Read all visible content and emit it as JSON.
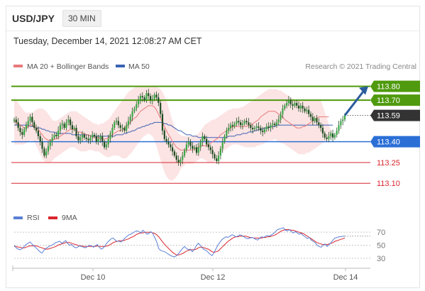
{
  "header": {
    "symbol": "USD/JPY",
    "timeframe": "30 MIN"
  },
  "timestamp": "Tuesday, December 14, 2021 12:08:27 AM CET",
  "legend": {
    "bollinger": "MA 20 + Bollinger Bands",
    "ma50": "MA 50",
    "credit": "Research © 2021 Trading Central"
  },
  "rsi_legend": {
    "rsi": "RSI",
    "ma9": "9MA"
  },
  "colors": {
    "green": "#4f9a0e",
    "blue": "#2b6fd6",
    "red": "#d8262d",
    "bb_fill": "#fce4e4",
    "ma20": "#e8797b",
    "ma50": "#3a62b3",
    "candle": "#2e7d32",
    "arrow": "#2c5c9e",
    "current_box": "#333333"
  },
  "chart_data": [
    {
      "type": "candlestick",
      "title": "USD/JPY 30 MIN",
      "x_tick_labels": [
        "Dec 10",
        "Dec 12",
        "Dec 14"
      ],
      "ylim": [
        113.05,
        113.88
      ],
      "levels": [
        {
          "value": 113.8,
          "label": "113.80",
          "kind": "resistance"
        },
        {
          "value": 113.7,
          "label": "113.70",
          "kind": "resistance"
        },
        {
          "value": 113.59,
          "label": "113.59",
          "kind": "current"
        },
        {
          "value": 113.4,
          "label": "113.40",
          "kind": "pivot"
        },
        {
          "value": 113.25,
          "label": "113.25",
          "kind": "support"
        },
        {
          "value": 113.1,
          "label": "113.10",
          "kind": "support"
        }
      ],
      "close": [
        113.56,
        113.54,
        113.5,
        113.47,
        113.45,
        113.49,
        113.52,
        113.55,
        113.58,
        113.54,
        113.5,
        113.48,
        113.44,
        113.4,
        113.35,
        113.3,
        113.33,
        113.37,
        113.4,
        113.43,
        113.45,
        113.44,
        113.48,
        113.52,
        113.53,
        113.5,
        113.54,
        113.56,
        113.52,
        113.49,
        113.5,
        113.44,
        113.41,
        113.43,
        113.45,
        113.43,
        113.42,
        113.41,
        113.43,
        113.45,
        113.44,
        113.4,
        113.42,
        113.44,
        113.4,
        113.36,
        113.38,
        113.42,
        113.46,
        113.5,
        113.54,
        113.55,
        113.52,
        113.5,
        113.5,
        113.48,
        113.52,
        113.55,
        113.58,
        113.62,
        113.64,
        113.67,
        113.7,
        113.73,
        113.72,
        113.7,
        113.75,
        113.73,
        113.7,
        113.71,
        113.74,
        113.72,
        113.68,
        113.6,
        113.48,
        113.42,
        113.4,
        113.38,
        113.36,
        113.33,
        113.3,
        113.27,
        113.25,
        113.27,
        113.3,
        113.34,
        113.38,
        113.4,
        113.37,
        113.35,
        113.36,
        113.32,
        113.36,
        113.4,
        113.44,
        113.42,
        113.38,
        113.36,
        113.34,
        113.31,
        113.28,
        113.26,
        113.3,
        113.35,
        113.4,
        113.44,
        113.48,
        113.5,
        113.52,
        113.51,
        113.53,
        113.55,
        113.54,
        113.52,
        113.53,
        113.55,
        113.54,
        113.52,
        113.5,
        113.49,
        113.5,
        113.51,
        113.5,
        113.48,
        113.47,
        113.49,
        113.51,
        113.5,
        113.52,
        113.53,
        113.52,
        113.54,
        113.56,
        113.6,
        113.64,
        113.66,
        113.68,
        113.7,
        113.67,
        113.66,
        113.68,
        113.66,
        113.64,
        113.66,
        113.64,
        113.62,
        113.63,
        113.6,
        113.58,
        113.55,
        113.57,
        113.54,
        113.52,
        113.5,
        113.46,
        113.43,
        113.42,
        113.44,
        113.46,
        113.43,
        113.45,
        113.48,
        113.52,
        113.55,
        113.56,
        113.59
      ],
      "ma20": [
        113.55,
        113.54,
        113.53,
        113.52,
        113.51,
        113.5,
        113.5,
        113.51,
        113.52,
        113.52,
        113.51,
        113.5,
        113.49,
        113.47,
        113.45,
        113.43,
        113.42,
        113.41,
        113.41,
        113.41,
        113.42,
        113.42,
        113.43,
        113.44,
        113.45,
        113.46,
        113.47,
        113.48,
        113.49,
        113.49,
        113.49,
        113.48,
        113.47,
        113.47,
        113.46,
        113.46,
        113.45,
        113.45,
        113.44,
        113.44,
        113.43,
        113.43,
        113.43,
        113.42,
        113.42,
        113.42,
        113.42,
        113.43,
        113.44,
        113.45,
        113.46,
        113.47,
        113.48,
        113.48,
        113.49,
        113.5,
        113.51,
        113.53,
        113.54,
        113.56,
        113.57,
        113.58,
        113.6,
        113.62,
        113.63,
        113.64,
        113.65,
        113.66,
        113.66,
        113.66,
        113.65,
        113.63,
        113.6,
        113.57,
        113.54,
        113.51,
        113.48,
        113.45,
        113.43,
        113.4,
        113.38,
        113.36,
        113.35,
        113.34,
        113.34,
        113.34,
        113.34,
        113.34,
        113.34,
        113.34,
        113.35,
        113.35,
        113.36,
        113.37,
        113.37,
        113.37,
        113.37,
        113.38,
        113.39,
        113.4,
        113.41,
        113.42,
        113.43,
        113.45,
        113.46,
        113.47,
        113.48,
        113.49,
        113.5,
        113.51,
        113.51,
        113.51,
        113.51,
        113.51,
        113.51,
        113.51,
        113.51,
        113.52,
        113.52,
        113.53,
        113.54,
        113.55,
        113.56,
        113.58,
        113.59,
        113.6,
        113.61,
        113.62,
        113.62,
        113.62,
        113.62,
        113.61,
        113.6,
        113.59,
        113.58,
        113.56,
        113.55,
        113.54,
        113.53,
        113.52,
        113.51,
        113.5,
        113.5,
        113.5,
        113.51,
        113.51,
        113.52,
        113.53,
        113.54,
        113.55,
        113.56,
        113.57,
        113.58,
        113.58,
        113.58,
        113.58,
        113.58,
        113.58
      ],
      "bb_upper": [
        113.72,
        113.7,
        113.68,
        113.66,
        113.64,
        113.62,
        113.61,
        113.61,
        113.61,
        113.61,
        113.62,
        113.63,
        113.64,
        113.64,
        113.64,
        113.63,
        113.62,
        113.6,
        113.58,
        113.56,
        113.55,
        113.55,
        113.56,
        113.57,
        113.58,
        113.59,
        113.6,
        113.61,
        113.62,
        113.62,
        113.62,
        113.62,
        113.61,
        113.6,
        113.59,
        113.58,
        113.57,
        113.56,
        113.55,
        113.54,
        113.53,
        113.53,
        113.52,
        113.53,
        113.53,
        113.54,
        113.55,
        113.56,
        113.58,
        113.6,
        113.62,
        113.64,
        113.66,
        113.68,
        113.7,
        113.72,
        113.74,
        113.76,
        113.77,
        113.78,
        113.79,
        113.8,
        113.8,
        113.8,
        113.8,
        113.8,
        113.8,
        113.8,
        113.8,
        113.8,
        113.8,
        113.8,
        113.79,
        113.78,
        113.76,
        113.73,
        113.7,
        113.65,
        113.6,
        113.55,
        113.51,
        113.48,
        113.46,
        113.45,
        113.44,
        113.44,
        113.44,
        113.44,
        113.44,
        113.44,
        113.44,
        113.45,
        113.46,
        113.48,
        113.5,
        113.52,
        113.53,
        113.54,
        113.55,
        113.56,
        113.56,
        113.57,
        113.58,
        113.59,
        113.6,
        113.61,
        113.62,
        113.63,
        113.63,
        113.64,
        113.64,
        113.64,
        113.64,
        113.65,
        113.65,
        113.66,
        113.67,
        113.68,
        113.69,
        113.7,
        113.71,
        113.72,
        113.73,
        113.74,
        113.75,
        113.76,
        113.77,
        113.78,
        113.78,
        113.78,
        113.78,
        113.78,
        113.77,
        113.77,
        113.76,
        113.75,
        113.74,
        113.73,
        113.72,
        113.71,
        113.7,
        113.7,
        113.7,
        113.7,
        113.7,
        113.7,
        113.7,
        113.7,
        113.7,
        113.7,
        113.7,
        113.7,
        113.7,
        113.7
      ],
      "bb_lower": [
        113.38,
        113.38,
        113.38,
        113.38,
        113.38,
        113.38,
        113.39,
        113.4,
        113.41,
        113.41,
        113.4,
        113.37,
        113.34,
        113.31,
        113.28,
        113.26,
        113.25,
        113.25,
        113.25,
        113.26,
        113.28,
        113.29,
        113.3,
        113.31,
        113.32,
        113.33,
        113.34,
        113.35,
        113.36,
        113.36,
        113.36,
        113.35,
        113.34,
        113.33,
        113.33,
        113.33,
        113.33,
        113.34,
        113.34,
        113.34,
        113.33,
        113.33,
        113.33,
        113.32,
        113.31,
        113.3,
        113.29,
        113.29,
        113.29,
        113.3,
        113.3,
        113.3,
        113.3,
        113.29,
        113.28,
        113.28,
        113.28,
        113.3,
        113.31,
        113.33,
        113.35,
        113.37,
        113.39,
        113.41,
        113.43,
        113.44,
        113.45,
        113.46,
        113.45,
        113.44,
        113.41,
        113.37,
        113.32,
        113.27,
        113.22,
        113.18,
        113.15,
        113.13,
        113.12,
        113.12,
        113.13,
        113.15,
        113.17,
        113.2,
        113.22,
        113.23,
        113.24,
        113.24,
        113.24,
        113.24,
        113.25,
        113.26,
        113.27,
        113.28,
        113.28,
        113.27,
        113.26,
        113.25,
        113.25,
        113.25,
        113.26,
        113.28,
        113.3,
        113.32,
        113.33,
        113.34,
        113.35,
        113.36,
        113.37,
        113.38,
        113.38,
        113.38,
        113.38,
        113.37,
        113.37,
        113.36,
        113.36,
        113.36,
        113.36,
        113.36,
        113.36,
        113.37,
        113.37,
        113.38,
        113.38,
        113.39,
        113.4,
        113.41,
        113.41,
        113.41,
        113.42,
        113.41,
        113.4,
        113.39,
        113.39,
        113.38,
        113.37,
        113.36,
        113.35,
        113.34,
        113.33,
        113.32,
        113.31,
        113.31,
        113.31,
        113.31,
        113.32,
        113.32,
        113.33,
        113.34,
        113.35,
        113.36,
        113.37,
        113.38,
        113.39,
        113.4,
        113.41,
        113.42,
        113.43,
        113.44
      ],
      "ma50": [
        113.52,
        113.52,
        113.52,
        113.52,
        113.52,
        113.52,
        113.52,
        113.52,
        113.51,
        113.51,
        113.51,
        113.5,
        113.5,
        113.5,
        113.49,
        113.49,
        113.48,
        113.48,
        113.47,
        113.47,
        113.47,
        113.46,
        113.46,
        113.46,
        113.46,
        113.46,
        113.46,
        113.46,
        113.46,
        113.45,
        113.45,
        113.45,
        113.45,
        113.45,
        113.45,
        113.45,
        113.45,
        113.45,
        113.44,
        113.44,
        113.44,
        113.44,
        113.44,
        113.44,
        113.44,
        113.44,
        113.44,
        113.44,
        113.44,
        113.44,
        113.44,
        113.45,
        113.45,
        113.45,
        113.45,
        113.46,
        113.46,
        113.47,
        113.47,
        113.48,
        113.48,
        113.49,
        113.5,
        113.5,
        113.51,
        113.51,
        113.52,
        113.52,
        113.53,
        113.53,
        113.54,
        113.54,
        113.54,
        113.54,
        113.54,
        113.53,
        113.53,
        113.52,
        113.52,
        113.51,
        113.5,
        113.49,
        113.48,
        113.48,
        113.47,
        113.46,
        113.45,
        113.45,
        113.45,
        113.44,
        113.44,
        113.44,
        113.43,
        113.43,
        113.43,
        113.43,
        113.43,
        113.43,
        113.43,
        113.43,
        113.43,
        113.43,
        113.43,
        113.43,
        113.43,
        113.43,
        113.43,
        113.44,
        113.44,
        113.44,
        113.44,
        113.45,
        113.45,
        113.45,
        113.46,
        113.46,
        113.46,
        113.47,
        113.47,
        113.47,
        113.48,
        113.48,
        113.49,
        113.49,
        113.49,
        113.5,
        113.5,
        113.5,
        113.51,
        113.51,
        113.51,
        113.52,
        113.52,
        113.52,
        113.52,
        113.52,
        113.52,
        113.52,
        113.52,
        113.52,
        113.52,
        113.52,
        113.52,
        113.52,
        113.52,
        113.52,
        113.52,
        113.52,
        113.52,
        113.52,
        113.52,
        113.52,
        113.52,
        113.52,
        113.52,
        113.52,
        113.52,
        113.52,
        113.52,
        113.52
      ],
      "forecast_arrow": {
        "from": 113.59,
        "to": 113.8
      }
    },
    {
      "type": "line",
      "series_names": [
        "RSI",
        "9MA"
      ],
      "y_tick_labels": [
        "70",
        "50",
        "30"
      ],
      "ylim": [
        20,
        80
      ],
      "rsi": [
        50,
        46,
        44,
        43,
        45,
        48,
        51,
        53,
        55,
        52,
        49,
        46,
        43,
        40,
        38,
        42,
        45,
        47,
        49,
        50,
        52,
        54,
        55,
        56,
        53,
        55,
        57,
        53,
        50,
        51,
        48,
        46,
        47,
        49,
        48,
        47,
        46,
        48,
        50,
        49,
        47,
        49,
        51,
        47,
        44,
        46,
        50,
        54,
        57,
        60,
        61,
        58,
        56,
        56,
        55,
        58,
        61,
        64,
        66,
        67,
        69,
        71,
        72,
        71,
        69,
        73,
        70,
        67,
        68,
        71,
        68,
        62,
        55,
        45,
        42,
        41,
        40,
        38,
        36,
        34,
        33,
        32,
        34,
        37,
        41,
        45,
        48,
        45,
        43,
        44,
        40,
        44,
        49,
        53,
        50,
        46,
        43,
        42,
        39,
        36,
        34,
        39,
        45,
        51,
        55,
        59,
        61,
        63,
        62,
        64,
        66,
        65,
        63,
        64,
        66,
        65,
        63,
        61,
        60,
        61,
        62,
        61,
        59,
        58,
        61,
        63,
        62,
        64,
        65,
        64,
        66,
        68,
        71,
        74,
        75,
        76,
        77,
        73,
        72,
        74,
        71,
        69,
        71,
        69,
        67,
        68,
        65,
        63,
        60,
        62,
        58,
        56,
        54,
        50,
        48,
        47,
        50,
        52,
        48,
        51,
        54,
        58,
        61,
        62,
        63,
        63,
        64,
        64
      ],
      "ma9": [
        48,
        48,
        47,
        47,
        46,
        46,
        47,
        48,
        49,
        49,
        49,
        49,
        48,
        47,
        46,
        45,
        44,
        44,
        45,
        46,
        47,
        48,
        50,
        51,
        52,
        53,
        54,
        54,
        54,
        53,
        52,
        51,
        50,
        49,
        49,
        48,
        48,
        48,
        48,
        48,
        48,
        48,
        49,
        48,
        48,
        48,
        48,
        49,
        50,
        52,
        54,
        55,
        56,
        57,
        57,
        57,
        58,
        59,
        60,
        62,
        63,
        65,
        67,
        68,
        69,
        69,
        70,
        70,
        70,
        70,
        69,
        68,
        66,
        63,
        59,
        55,
        51,
        48,
        45,
        42,
        39,
        37,
        35,
        35,
        36,
        37,
        39,
        41,
        42,
        43,
        43,
        43,
        44,
        46,
        47,
        47,
        46,
        45,
        44,
        42,
        40,
        39,
        40,
        41,
        44,
        47,
        50,
        53,
        56,
        58,
        60,
        62,
        63,
        63,
        64,
        64,
        64,
        64,
        63,
        62,
        62,
        61,
        61,
        61,
        61,
        61,
        62,
        62,
        63,
        63,
        64,
        65,
        66,
        68,
        70,
        72,
        73,
        74,
        74,
        74,
        73,
        73,
        72,
        71,
        70,
        69,
        68,
        66,
        64,
        62,
        60,
        58,
        56,
        54,
        53,
        52,
        51,
        51,
        51,
        52,
        53,
        54,
        56,
        57,
        58,
        59,
        60,
        61
      ]
    }
  ]
}
